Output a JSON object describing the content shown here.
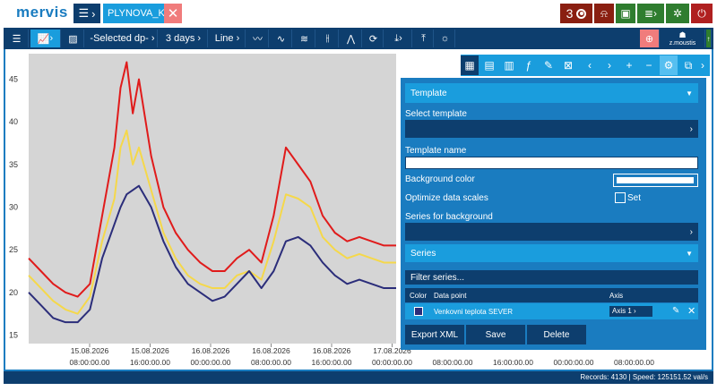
{
  "app": {
    "logo": "mervis"
  },
  "tabs": [
    {
      "label": "PLYNOVA_K"
    }
  ],
  "top_right": {
    "counter": "3",
    "colors": {
      "counter_bg": "#8a1f11",
      "alarm_bg": "#8a1f11",
      "green_bg": "#2f7d2f",
      "power_bg": "#b02020"
    }
  },
  "toolbar": {
    "dp_select": "-Selected dp-",
    "range": "3 days",
    "chart_type": "Line"
  },
  "user": {
    "name": "z.moustis"
  },
  "chart": {
    "y_ticks": [
      "45",
      "40",
      "35",
      "30",
      "25",
      "20",
      "15"
    ],
    "x_ticks": [
      {
        "date": "15.08.2026",
        "time": "08:00:00.00"
      },
      {
        "date": "15.08.2026",
        "time": "16:00:00.00"
      },
      {
        "date": "16.08.2026",
        "time": "00:00:00.00"
      },
      {
        "date": "16.08.2026",
        "time": "08:00:00.00"
      },
      {
        "date": "16.08.2026",
        "time": "16:00:00.00"
      },
      {
        "date": "17.08.2026",
        "time": "00:00:00.00"
      },
      {
        "date": "",
        "time": "08:00:00.00"
      },
      {
        "date": "",
        "time": "16:00:00.00"
      },
      {
        "date": "",
        "time": "00:00:00.00"
      },
      {
        "date": "",
        "time": "08:00:00.00"
      }
    ],
    "series_colors": [
      "#e01b1b",
      "#f5d84a",
      "#2b2d7a"
    ]
  },
  "chart_data": {
    "type": "line",
    "ylim": [
      14,
      48
    ],
    "x": [
      0,
      4,
      8,
      12,
      16,
      20,
      24,
      28,
      30,
      32,
      34,
      36,
      40,
      44,
      48,
      52,
      56,
      60,
      64,
      68,
      72,
      76,
      80,
      84,
      88,
      92,
      96,
      100,
      104,
      108,
      112,
      116,
      120
    ],
    "series": [
      {
        "values": [
          24,
          22.5,
          21,
          20,
          19.5,
          21,
          29,
          37,
          44,
          47,
          41,
          45,
          36,
          30,
          27,
          25,
          23.5,
          22.5,
          22.5,
          24,
          25,
          23.5,
          29,
          37,
          35,
          33,
          29,
          27,
          26,
          26.5,
          26,
          25.5,
          25.5
        ]
      },
      {
        "values": [
          22,
          20.5,
          19,
          18,
          17.5,
          19.5,
          26,
          31,
          37,
          39,
          35,
          37,
          32,
          27,
          24,
          22,
          21,
          20.5,
          20.5,
          22,
          22.5,
          21.5,
          26,
          31.5,
          31,
          30,
          26.5,
          25,
          24,
          24.5,
          24,
          23.5,
          23.5
        ]
      },
      {
        "values": [
          20,
          18.5,
          17,
          16.5,
          16.5,
          18,
          24,
          28,
          30,
          31.5,
          32,
          32.5,
          30,
          26,
          23,
          21,
          20,
          19,
          19.5,
          21,
          22.5,
          20.5,
          22.5,
          26,
          26.5,
          25.5,
          23.5,
          22,
          21,
          21.5,
          21,
          20.5,
          20.5
        ]
      }
    ]
  },
  "panel": {
    "template_header": "Template",
    "select_template_label": "Select template",
    "template_name_label": "Template name",
    "background_color_label": "Background color",
    "optimize_label": "Optimize data scales",
    "set_label": "Set",
    "series_bg_label": "Series for background",
    "series_header": "Series",
    "filter_placeholder": "Filter series...",
    "table_headers": {
      "color": "Color",
      "data_point": "Data point",
      "axis": "Axis"
    },
    "rows": [
      {
        "data_point": "Venkovni teplota SEVER",
        "axis": "Axis 1",
        "color": "#2b2d7a"
      }
    ],
    "buttons": {
      "export": "Export XML",
      "save": "Save",
      "delete": "Delete"
    }
  },
  "status": {
    "text": "Records: 4130 | Speed: 125151.52 val/s"
  }
}
